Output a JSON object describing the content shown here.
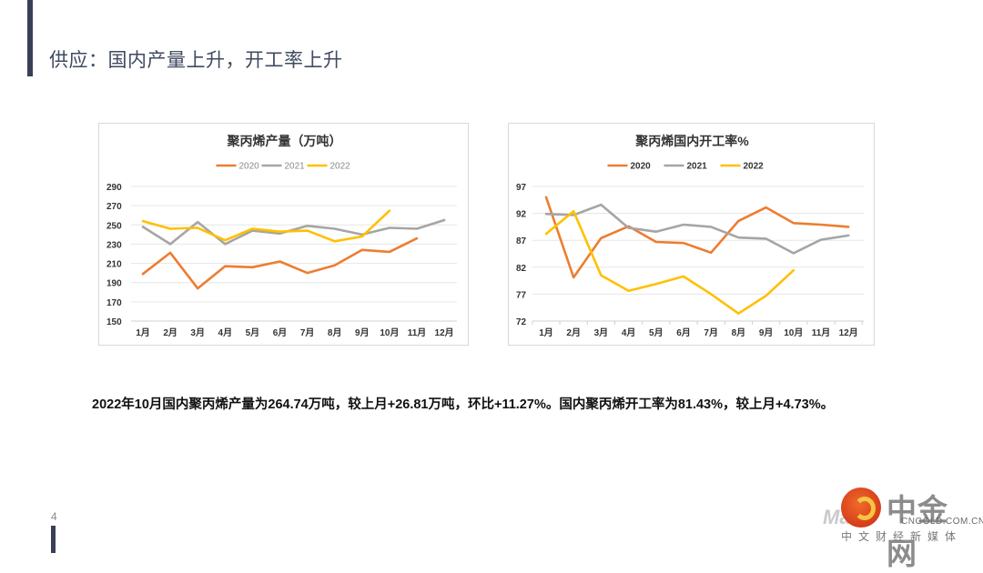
{
  "page": {
    "title": "供应：国内产量上升，开工率上升",
    "page_number": "4",
    "summary": "2022年10月国内聚丙烯产量为264.74万吨，较上月+26.81万吨，环比+11.27%。国内聚丙烯开工率为81.43%，较上月+4.73%。"
  },
  "logo": {
    "name": "中金网",
    "url_text": "CNGOLD.COM.CN",
    "subtitle": "中文财经新媒体",
    "watermark": "Mace"
  },
  "chart_data": [
    {
      "id": "production",
      "type": "line",
      "title": "聚丙烯产量（万吨）",
      "xlabel": "",
      "ylabel": "",
      "categories": [
        "1月",
        "2月",
        "3月",
        "4月",
        "5月",
        "6月",
        "7月",
        "8月",
        "9月",
        "10月",
        "11月",
        "12月"
      ],
      "ylim": [
        150,
        290
      ],
      "yticks": [
        150,
        170,
        190,
        210,
        230,
        250,
        270,
        290
      ],
      "grid": true,
      "legend": "top-center",
      "series": [
        {
          "name": "2020",
          "color": "#ED7D31",
          "values": [
            199,
            221,
            184,
            207,
            206,
            212,
            200,
            208,
            224,
            222,
            236,
            null
          ]
        },
        {
          "name": "2021",
          "color": "#A5A5A5",
          "values": [
            248,
            230,
            253,
            230,
            244,
            241,
            249,
            246,
            240,
            247,
            246,
            255
          ]
        },
        {
          "name": "2022",
          "color": "#FFC000",
          "values": [
            254,
            246,
            247,
            234,
            246,
            243,
            244,
            233,
            238,
            264.74,
            null,
            null
          ]
        }
      ]
    },
    {
      "id": "operating-rate",
      "type": "line",
      "title": "聚丙烯国内开工率%",
      "xlabel": "",
      "ylabel": "",
      "categories": [
        "1月",
        "2月",
        "3月",
        "4月",
        "5月",
        "6月",
        "7月",
        "8月",
        "9月",
        "10月",
        "11月",
        "12月"
      ],
      "ylim": [
        72,
        97
      ],
      "yticks": [
        72,
        77,
        82,
        87,
        92,
        97
      ],
      "grid": true,
      "legend": "top-center",
      "series": [
        {
          "name": "2020",
          "color": "#ED7D31",
          "values": [
            95.0,
            80.1,
            87.4,
            89.6,
            86.7,
            86.5,
            84.7,
            90.6,
            93.1,
            90.2,
            89.9,
            89.5
          ]
        },
        {
          "name": "2021",
          "color": "#A5A5A5",
          "values": [
            91.9,
            91.7,
            93.6,
            89.3,
            88.6,
            89.9,
            89.5,
            87.5,
            87.3,
            84.6,
            87.1,
            87.9
          ]
        },
        {
          "name": "2022",
          "color": "#FFC000",
          "values": [
            88.2,
            92.4,
            80.5,
            77.6,
            78.9,
            80.3,
            77.0,
            73.4,
            76.7,
            81.43,
            null,
            null
          ]
        }
      ]
    }
  ]
}
